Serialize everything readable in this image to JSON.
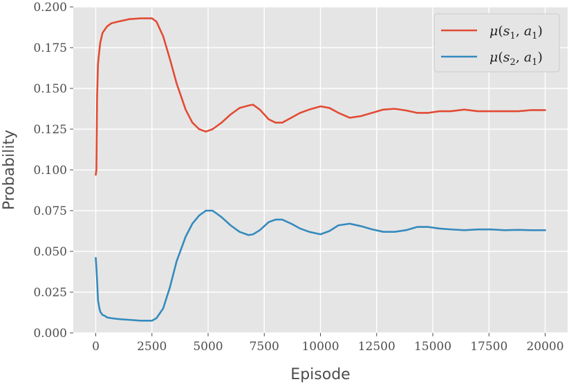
{
  "chart_data": {
    "type": "line",
    "xlabel": "Episode",
    "ylabel": "Probability",
    "xlim": [
      -1000,
      21000
    ],
    "ylim": [
      0.0,
      0.2
    ],
    "xticks": [
      0,
      2500,
      5000,
      7500,
      10000,
      12500,
      15000,
      17500,
      20000
    ],
    "xtick_labels": [
      "0",
      "2500",
      "5000",
      "7500",
      "10000",
      "12500",
      "15000",
      "17500",
      "20000"
    ],
    "yticks": [
      0.0,
      0.025,
      0.05,
      0.075,
      0.1,
      0.125,
      0.15,
      0.175,
      0.2
    ],
    "ytick_labels": [
      "0.000",
      "0.025",
      "0.050",
      "0.075",
      "0.100",
      "0.125",
      "0.150",
      "0.175",
      "0.200"
    ],
    "grid": true,
    "legend_position": "top-right",
    "series": [
      {
        "name": "μ(s1, a1)",
        "color": "#e24a33",
        "x": [
          0,
          30,
          60,
          100,
          150,
          200,
          300,
          400,
          500,
          700,
          1000,
          1500,
          2000,
          2500,
          2700,
          3000,
          3300,
          3600,
          4000,
          4300,
          4600,
          4900,
          5200,
          5600,
          6000,
          6400,
          6800,
          7000,
          7300,
          7700,
          8000,
          8300,
          8700,
          9100,
          9500,
          10000,
          10400,
          10800,
          11300,
          11800,
          12300,
          12800,
          13300,
          13800,
          14300,
          14800,
          15300,
          15800,
          16400,
          17000,
          17600,
          18200,
          18800,
          19400,
          20000
        ],
        "y": [
          0.097,
          0.1,
          0.145,
          0.165,
          0.172,
          0.178,
          0.184,
          0.186,
          0.188,
          0.19,
          0.191,
          0.1925,
          0.193,
          0.193,
          0.191,
          0.182,
          0.168,
          0.153,
          0.137,
          0.129,
          0.125,
          0.1235,
          0.125,
          0.129,
          0.134,
          0.138,
          0.1395,
          0.14,
          0.137,
          0.131,
          0.129,
          0.129,
          0.132,
          0.135,
          0.137,
          0.139,
          0.138,
          0.135,
          0.132,
          0.133,
          0.135,
          0.137,
          0.1375,
          0.1365,
          0.135,
          0.135,
          0.136,
          0.136,
          0.137,
          0.136,
          0.136,
          0.136,
          0.136,
          0.1367,
          0.1367
        ]
      },
      {
        "name": "μ(s2, a1)",
        "color": "#348abd",
        "x": [
          0,
          30,
          60,
          100,
          150,
          200,
          300,
          400,
          500,
          700,
          1000,
          1500,
          2000,
          2500,
          2700,
          3000,
          3300,
          3600,
          4000,
          4300,
          4600,
          4900,
          5200,
          5600,
          6000,
          6400,
          6800,
          7000,
          7300,
          7700,
          8000,
          8300,
          8700,
          9100,
          9500,
          10000,
          10400,
          10800,
          11300,
          11800,
          12300,
          12800,
          13300,
          13800,
          14300,
          14800,
          15300,
          15800,
          16400,
          17000,
          17600,
          18200,
          18800,
          19400,
          20000
        ],
        "y": [
          0.046,
          0.04,
          0.032,
          0.02,
          0.016,
          0.013,
          0.011,
          0.0105,
          0.0095,
          0.009,
          0.0085,
          0.008,
          0.0075,
          0.0075,
          0.009,
          0.015,
          0.028,
          0.044,
          0.059,
          0.067,
          0.072,
          0.075,
          0.075,
          0.071,
          0.066,
          0.062,
          0.06,
          0.0605,
          0.063,
          0.068,
          0.0695,
          0.0695,
          0.067,
          0.064,
          0.062,
          0.0605,
          0.0625,
          0.066,
          0.067,
          0.0655,
          0.0635,
          0.062,
          0.062,
          0.063,
          0.065,
          0.065,
          0.064,
          0.0635,
          0.063,
          0.0635,
          0.0635,
          0.063,
          0.0632,
          0.063,
          0.063
        ]
      }
    ]
  },
  "legend": {
    "items": [
      {
        "mu": "μ",
        "s": "s",
        "sub_s": "1",
        "a": "a",
        "sub_a": "1",
        "color": "#e24a33"
      },
      {
        "mu": "μ",
        "s": "s",
        "sub_s": "2",
        "a": "a",
        "sub_a": "1",
        "color": "#348abd"
      }
    ]
  },
  "colors": {
    "plot_background": "#e5e5e5",
    "grid": "#ffffff",
    "text": "#4d4d4d"
  }
}
